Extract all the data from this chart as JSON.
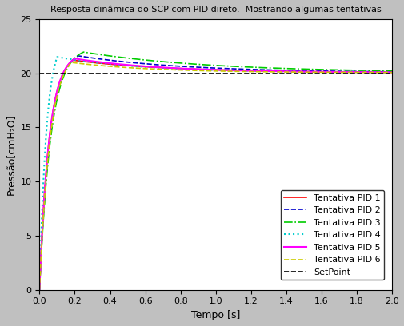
{
  "title": "Resposta dinâmica do SCP com PID direto.  Mostrando algumas tentativas",
  "xlabel": "Tempo [s]",
  "ylabel": "Pressão[cmH₂O]",
  "xlim": [
    0,
    2
  ],
  "ylim": [
    0,
    25
  ],
  "xticks": [
    0,
    0.2,
    0.4,
    0.6,
    0.8,
    1.0,
    1.2,
    1.4,
    1.6,
    1.8,
    2.0
  ],
  "yticks": [
    0,
    5,
    10,
    15,
    20,
    25
  ],
  "setpoint": 20,
  "background_color": "#c0c0c0",
  "axes_background": "#ffffff",
  "series": [
    {
      "label": "Tentativa PID 1",
      "color": "#ff0000",
      "linestyle": "-",
      "linewidth": 1.2,
      "start": 0.0,
      "peak": 21.2,
      "peak_time": 0.19,
      "tau_rise": 0.055,
      "tau_fall": 0.55,
      "settle": 20.05
    },
    {
      "label": "Tentativa PID 2",
      "color": "#0000cc",
      "linestyle": "--",
      "linewidth": 1.2,
      "start": 0.0,
      "peak": 21.6,
      "peak_time": 0.22,
      "tau_rise": 0.06,
      "tau_fall": 0.6,
      "settle": 20.05
    },
    {
      "label": "Tentativa PID 3",
      "color": "#00cc00",
      "linestyle": "-.",
      "linewidth": 1.2,
      "start": 0.0,
      "peak": 21.95,
      "peak_time": 0.25,
      "tau_rise": 0.065,
      "tau_fall": 0.72,
      "settle": 20.05
    },
    {
      "label": "Tentativa PID 4",
      "color": "#00cccc",
      "linestyle": ":",
      "linewidth": 1.5,
      "start": 0.0,
      "peak": 21.5,
      "peak_time": 0.1,
      "tau_rise": 0.04,
      "tau_fall": 0.5,
      "settle": 20.05
    },
    {
      "label": "Tentativa PID 5",
      "color": "#ff00ff",
      "linestyle": "-",
      "linewidth": 1.5,
      "start": 0.0,
      "peak": 21.35,
      "peak_time": 0.2,
      "tau_rise": 0.055,
      "tau_fall": 0.5,
      "settle": 20.05
    },
    {
      "label": "Tentativa PID 6",
      "color": "#cccc00",
      "linestyle": "--",
      "linewidth": 1.2,
      "start": 0.0,
      "peak": 21.0,
      "peak_time": 0.18,
      "tau_rise": 0.06,
      "tau_fall": 0.45,
      "settle": 20.05
    }
  ],
  "setpoint_label": "SetPoint",
  "setpoint_color": "#000000",
  "setpoint_linestyle": "--",
  "setpoint_linewidth": 1.2,
  "title_fontsize": 8,
  "label_fontsize": 9,
  "tick_fontsize": 8,
  "legend_fontsize": 8
}
